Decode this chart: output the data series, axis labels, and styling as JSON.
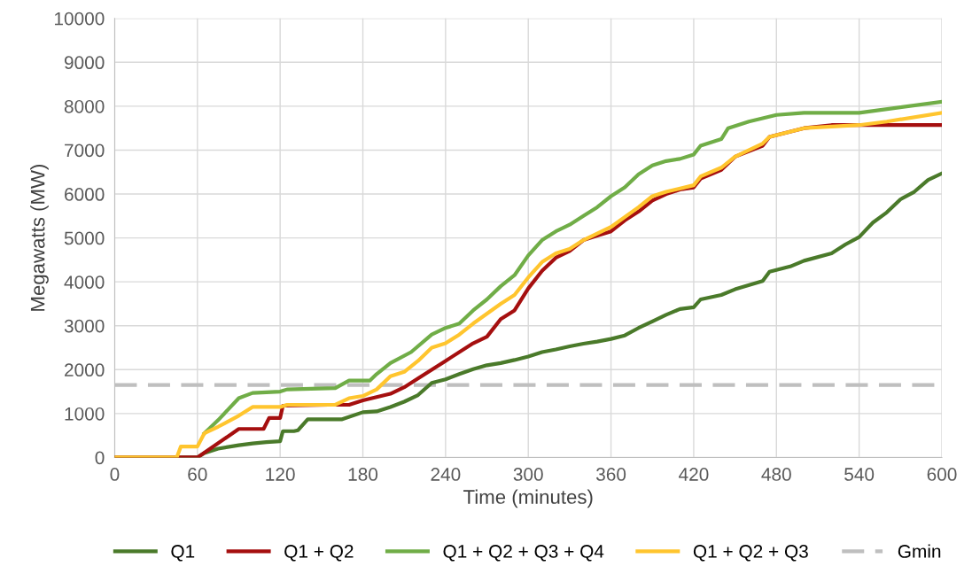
{
  "chart_data": {
    "type": "line",
    "xlabel": "Time (minutes)",
    "ylabel": "Megawatts (MW)",
    "xlim": [
      0,
      600
    ],
    "xticks": [
      0,
      60,
      120,
      180,
      240,
      300,
      360,
      420,
      480,
      540,
      600
    ],
    "ylim": [
      0,
      10000
    ],
    "yticks": [
      0,
      1000,
      2000,
      3000,
      4000,
      5000,
      6000,
      7000,
      8000,
      9000,
      10000
    ],
    "grid": true,
    "legend": "bottom",
    "marker": "none",
    "line_style": "solid",
    "series": [
      {
        "name": "Q1",
        "color": "#4a7a2a",
        "x": [
          0,
          60,
          65,
          75,
          90,
          100,
          110,
          120,
          122,
          130,
          133,
          140,
          165,
          180,
          190,
          200,
          210,
          220,
          230,
          240,
          250,
          260,
          270,
          280,
          290,
          300,
          310,
          320,
          330,
          340,
          350,
          360,
          370,
          380,
          390,
          400,
          410,
          420,
          425,
          440,
          450,
          470,
          475,
          490,
          500,
          520,
          530,
          540,
          550,
          560,
          570,
          580,
          590,
          600
        ],
        "values": [
          0,
          0,
          100,
          200,
          280,
          320,
          350,
          370,
          600,
          600,
          620,
          870,
          870,
          1030,
          1050,
          1150,
          1270,
          1420,
          1700,
          1780,
          1900,
          2010,
          2100,
          2150,
          2220,
          2300,
          2400,
          2460,
          2530,
          2590,
          2640,
          2700,
          2780,
          2950,
          3100,
          3250,
          3380,
          3420,
          3600,
          3700,
          3830,
          4020,
          4230,
          4350,
          4480,
          4650,
          4850,
          5020,
          5350,
          5580,
          5880,
          6050,
          6320,
          6470
        ]
      },
      {
        "name": "Q1 + Q2",
        "color": "#a50f0f",
        "x": [
          0,
          60,
          90,
          100,
          108,
          112,
          120,
          122,
          155,
          170,
          180,
          200,
          210,
          220,
          240,
          260,
          270,
          280,
          290,
          300,
          310,
          320,
          330,
          340,
          350,
          360,
          370,
          380,
          390,
          400,
          410,
          420,
          425,
          440,
          450,
          470,
          475,
          500,
          520,
          540,
          600
        ],
        "values": [
          0,
          0,
          650,
          650,
          650,
          900,
          900,
          1180,
          1200,
          1200,
          1300,
          1450,
          1600,
          1800,
          2200,
          2600,
          2750,
          3150,
          3350,
          3850,
          4250,
          4550,
          4700,
          4950,
          5050,
          5150,
          5400,
          5600,
          5850,
          6000,
          6100,
          6150,
          6350,
          6550,
          6850,
          7100,
          7300,
          7500,
          7570,
          7570,
          7570
        ]
      },
      {
        "name": "Q1 + Q2 + Q3 + Q4",
        "color": "#70ad47",
        "x": [
          65,
          75,
          90,
          100,
          120,
          125,
          160,
          170,
          185,
          190,
          200,
          215,
          230,
          240,
          250,
          260,
          270,
          280,
          290,
          300,
          310,
          320,
          330,
          340,
          350,
          360,
          370,
          380,
          390,
          400,
          410,
          420,
          425,
          440,
          445,
          460,
          480,
          500,
          540,
          600
        ],
        "values": [
          550,
          850,
          1350,
          1470,
          1500,
          1550,
          1580,
          1750,
          1750,
          1900,
          2150,
          2400,
          2800,
          2950,
          3050,
          3350,
          3600,
          3900,
          4150,
          4600,
          4950,
          5150,
          5300,
          5500,
          5700,
          5950,
          6150,
          6450,
          6650,
          6750,
          6800,
          6900,
          7100,
          7250,
          7500,
          7650,
          7800,
          7850,
          7850,
          8100
        ]
      },
      {
        "name": "Q1 + Q2 + Q3",
        "color": "#ffc52e",
        "x": [
          0,
          45,
          48,
          60,
          65,
          75,
          90,
          100,
          120,
          125,
          160,
          170,
          180,
          190,
          200,
          210,
          220,
          230,
          240,
          250,
          260,
          280,
          290,
          300,
          310,
          320,
          330,
          340,
          360,
          380,
          390,
          400,
          420,
          425,
          440,
          450,
          470,
          475,
          500,
          540,
          560,
          600
        ],
        "values": [
          0,
          0,
          250,
          250,
          550,
          700,
          950,
          1150,
          1150,
          1200,
          1200,
          1350,
          1400,
          1550,
          1850,
          1950,
          2200,
          2500,
          2600,
          2800,
          3050,
          3500,
          3700,
          4100,
          4450,
          4650,
          4750,
          4950,
          5250,
          5700,
          5950,
          6050,
          6200,
          6400,
          6600,
          6850,
          7150,
          7300,
          7500,
          7570,
          7650,
          7850
        ]
      }
    ],
    "ref_lines": [
      {
        "axis": "y",
        "value": 1650,
        "label": "Gmin",
        "color": "#bfbfbf",
        "line_style": "dashed"
      }
    ]
  }
}
